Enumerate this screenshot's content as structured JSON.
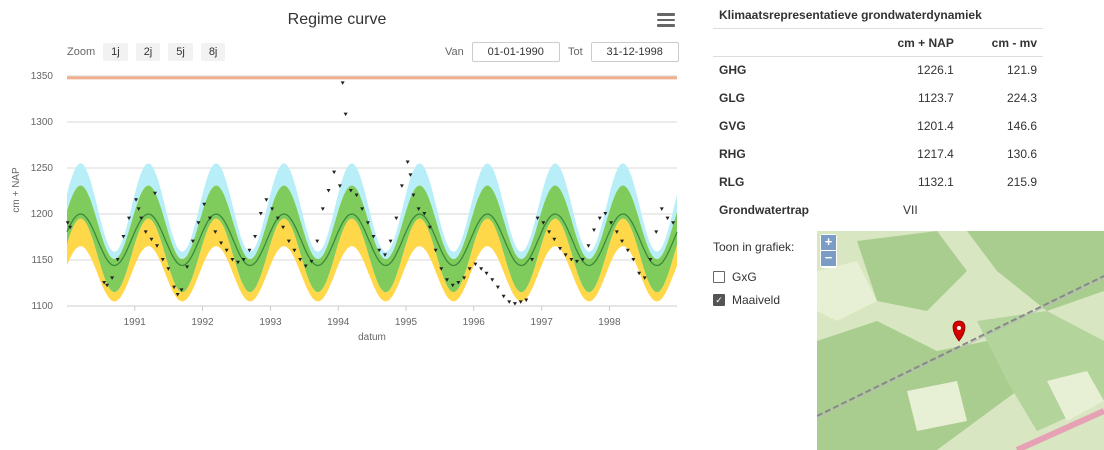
{
  "chart_data": {
    "type": "line",
    "title": "Regime curve",
    "xlabel": "datum",
    "ylabel": "cm + NAP",
    "x_range": [
      "1990-01-01",
      "1998-12-31"
    ],
    "ylim": [
      1100,
      1350
    ],
    "y_ticks": [
      1100,
      1150,
      1200,
      1250,
      1300,
      1350
    ],
    "x_tick_labels": [
      "1991",
      "1992",
      "1993",
      "1994",
      "1995",
      "1996",
      "1997",
      "1998"
    ],
    "grid": true,
    "maaiveld": 1348,
    "regime": {
      "median_mean": 1172,
      "median_amp": 28,
      "inner_band_mean": 1173,
      "inner_band_amp": 40,
      "inner_band_half_width": 18,
      "outer_upper_mean": 1207,
      "outer_upper_amp": 48,
      "outer_lower_mean": 1135,
      "outer_lower_amp": 30,
      "peak_month_fraction": 0.2
    },
    "measurements": [
      {
        "x": "1990-01-05",
        "y": 1190
      },
      {
        "x": "1990-01-18",
        "y": 1185
      },
      {
        "x": "1991-01-08",
        "y": 1215
      },
      {
        "x": "1991-01-22",
        "y": 1205
      },
      {
        "x": "1991-02-05",
        "y": 1195
      },
      {
        "x": "1990-07-20",
        "y": 1125
      },
      {
        "x": "1990-08-05",
        "y": 1122
      },
      {
        "x": "1990-09-01",
        "y": 1130
      },
      {
        "x": "1990-10-01",
        "y": 1150
      },
      {
        "x": "1990-11-01",
        "y": 1175
      },
      {
        "x": "1990-12-01",
        "y": 1195
      },
      {
        "x": "1991-03-01",
        "y": 1180
      },
      {
        "x": "1991-04-01",
        "y": 1172
      },
      {
        "x": "1991-05-01",
        "y": 1165
      },
      {
        "x": "1991-06-01",
        "y": 1150
      },
      {
        "x": "1991-07-01",
        "y": 1140
      },
      {
        "x": "1991-08-01",
        "y": 1120
      },
      {
        "x": "1991-08-20",
        "y": 1112
      },
      {
        "x": "1991-09-10",
        "y": 1117
      },
      {
        "x": "1991-10-10",
        "y": 1142
      },
      {
        "x": "1991-11-10",
        "y": 1170
      },
      {
        "x": "1991-12-10",
        "y": 1190
      },
      {
        "x": "1991-04-20",
        "y": 1222
      },
      {
        "x": "1992-01-10",
        "y": 1210
      },
      {
        "x": "1992-02-10",
        "y": 1195
      },
      {
        "x": "1992-03-10",
        "y": 1180
      },
      {
        "x": "1992-04-10",
        "y": 1168
      },
      {
        "x": "1992-05-10",
        "y": 1160
      },
      {
        "x": "1992-06-10",
        "y": 1150
      },
      {
        "x": "1992-07-10",
        "y": 1147
      },
      {
        "x": "1992-08-10",
        "y": 1150
      },
      {
        "x": "1992-09-10",
        "y": 1160
      },
      {
        "x": "1992-10-10",
        "y": 1175
      },
      {
        "x": "1992-11-10",
        "y": 1200
      },
      {
        "x": "1992-12-10",
        "y": 1215
      },
      {
        "x": "1993-01-10",
        "y": 1205
      },
      {
        "x": "1993-02-10",
        "y": 1195
      },
      {
        "x": "1993-03-10",
        "y": 1185
      },
      {
        "x": "1993-04-10",
        "y": 1170
      },
      {
        "x": "1993-05-10",
        "y": 1160
      },
      {
        "x": "1993-06-10",
        "y": 1150
      },
      {
        "x": "1993-07-10",
        "y": 1143
      },
      {
        "x": "1993-08-10",
        "y": 1148
      },
      {
        "x": "1993-09-10",
        "y": 1170
      },
      {
        "x": "1993-10-10",
        "y": 1205
      },
      {
        "x": "1993-11-10",
        "y": 1225
      },
      {
        "x": "1993-12-10",
        "y": 1245
      },
      {
        "x": "1994-01-25",
        "y": 1342
      },
      {
        "x": "1994-02-10",
        "y": 1308
      },
      {
        "x": "1994-01-10",
        "y": 1230
      },
      {
        "x": "1994-03-10",
        "y": 1225
      },
      {
        "x": "1994-04-10",
        "y": 1220
      },
      {
        "x": "1994-05-10",
        "y": 1205
      },
      {
        "x": "1994-06-10",
        "y": 1190
      },
      {
        "x": "1994-07-10",
        "y": 1175
      },
      {
        "x": "1994-08-10",
        "y": 1160
      },
      {
        "x": "1994-09-10",
        "y": 1155
      },
      {
        "x": "1994-10-10",
        "y": 1170
      },
      {
        "x": "1994-11-10",
        "y": 1195
      },
      {
        "x": "1994-12-10",
        "y": 1230
      },
      {
        "x": "1995-01-10",
        "y": 1256
      },
      {
        "x": "1995-01-25",
        "y": 1242
      },
      {
        "x": "1995-02-10",
        "y": 1220
      },
      {
        "x": "1995-03-10",
        "y": 1205
      },
      {
        "x": "1995-04-10",
        "y": 1200
      },
      {
        "x": "1995-05-10",
        "y": 1185
      },
      {
        "x": "1995-06-10",
        "y": 1160
      },
      {
        "x": "1995-07-10",
        "y": 1140
      },
      {
        "x": "1995-08-10",
        "y": 1128
      },
      {
        "x": "1995-09-10",
        "y": 1122
      },
      {
        "x": "1995-10-10",
        "y": 1125
      },
      {
        "x": "1995-11-10",
        "y": 1130
      },
      {
        "x": "1995-12-10",
        "y": 1140
      },
      {
        "x": "1996-01-10",
        "y": 1145
      },
      {
        "x": "1996-02-10",
        "y": 1140
      },
      {
        "x": "1996-03-10",
        "y": 1135
      },
      {
        "x": "1996-04-10",
        "y": 1128
      },
      {
        "x": "1996-05-10",
        "y": 1120
      },
      {
        "x": "1996-06-10",
        "y": 1110
      },
      {
        "x": "1996-07-10",
        "y": 1104
      },
      {
        "x": "1996-08-10",
        "y": 1102
      },
      {
        "x": "1996-09-10",
        "y": 1104
      },
      {
        "x": "1996-10-10",
        "y": 1106
      },
      {
        "x": "1996-11-10",
        "y": 1150
      },
      {
        "x": "1996-12-10",
        "y": 1195
      },
      {
        "x": "1997-01-10",
        "y": 1190
      },
      {
        "x": "1997-02-10",
        "y": 1180
      },
      {
        "x": "1997-03-10",
        "y": 1172
      },
      {
        "x": "1997-04-10",
        "y": 1162
      },
      {
        "x": "1997-05-10",
        "y": 1155
      },
      {
        "x": "1997-06-10",
        "y": 1150
      },
      {
        "x": "1997-07-10",
        "y": 1148
      },
      {
        "x": "1997-08-10",
        "y": 1150
      },
      {
        "x": "1997-09-10",
        "y": 1165
      },
      {
        "x": "1997-10-10",
        "y": 1182
      },
      {
        "x": "1997-11-10",
        "y": 1195
      },
      {
        "x": "1997-12-10",
        "y": 1200
      },
      {
        "x": "1998-01-10",
        "y": 1190
      },
      {
        "x": "1998-02-10",
        "y": 1180
      },
      {
        "x": "1998-03-10",
        "y": 1170
      },
      {
        "x": "1998-04-10",
        "y": 1160
      },
      {
        "x": "1998-05-10",
        "y": 1150
      },
      {
        "x": "1998-06-10",
        "y": 1135
      },
      {
        "x": "1998-07-10",
        "y": 1130
      },
      {
        "x": "1998-08-10",
        "y": 1150
      },
      {
        "x": "1998-09-10",
        "y": 1180
      },
      {
        "x": "1998-10-10",
        "y": 1205
      },
      {
        "x": "1998-11-10",
        "y": 1195
      },
      {
        "x": "1998-12-10",
        "y": 1190
      }
    ]
  },
  "toolbar": {
    "zoom_label": "Zoom",
    "zoom_buttons": [
      "1j",
      "2j",
      "5j",
      "8j"
    ],
    "van_label": "Van",
    "van_value": "01-01-1990",
    "tot_label": "Tot",
    "tot_value": "31-12-1998"
  },
  "stats": {
    "title": "Klimaatsrepresentatieve grondwaterdynamiek",
    "col1": "cm + NAP",
    "col2": "cm - mv",
    "rows": [
      {
        "label": "GHG",
        "nap": "1226.1",
        "mv": "121.9"
      },
      {
        "label": "GLG",
        "nap": "1123.7",
        "mv": "224.3"
      },
      {
        "label": "GVG",
        "nap": "1201.4",
        "mv": "146.6"
      },
      {
        "label": "RHG",
        "nap": "1217.4",
        "mv": "130.6"
      },
      {
        "label": "RLG",
        "nap": "1132.1",
        "mv": "215.9"
      }
    ],
    "grondwatertrap_label": "Grondwatertrap",
    "grondwatertrap_value": "VII"
  },
  "toon": {
    "title": "Toon in grafiek:",
    "options": [
      {
        "label": "GxG",
        "checked": false
      },
      {
        "label": "Maaiveld",
        "checked": true
      }
    ]
  },
  "map": {
    "zoom_in": "+",
    "zoom_out": "−",
    "marker_icon": "map-marker-icon",
    "colors": {
      "forest": "#a9cd8f",
      "field": "#dfe9c9",
      "road": "#e7a1b5",
      "rail": "#888888",
      "marker": "#d40000"
    }
  },
  "colors": {
    "outer_band": "#b8eef8",
    "inner_band": "#7fcc5c",
    "lower_band": "#ffd84a",
    "median_line": "#3a8a3a",
    "maaiveld": "#f0b090",
    "grid": "#d8d8d8"
  }
}
